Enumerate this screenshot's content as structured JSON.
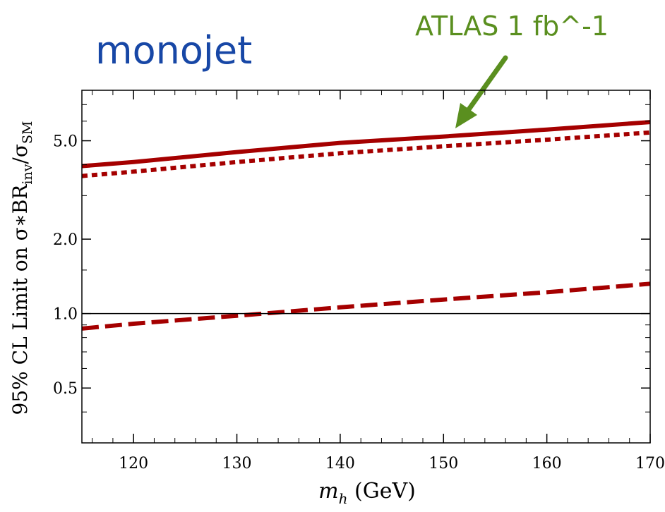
{
  "chart_data": {
    "type": "line",
    "title": "monojet",
    "annotation": "ATLAS 1 fb^-1",
    "xlabel": {
      "var": "m",
      "sub": "h",
      "unit": " (GeV)"
    },
    "ylabel": {
      "prefix": "95% CL Limit on σ∗BR",
      "sub1": "inv",
      "mid": "/σ",
      "sub2": "SM"
    },
    "xlim": [
      115,
      170
    ],
    "ylim": [
      0.3,
      8.0
    ],
    "yscale": "log",
    "grid": false,
    "x_ticks": [
      120,
      130,
      140,
      150,
      160,
      170
    ],
    "x_tick_labels": [
      "120",
      "130",
      "140",
      "150",
      "160",
      "170"
    ],
    "y_ticks": [
      0.5,
      1.0,
      2.0,
      5.0
    ],
    "y_tick_labels": [
      "0.5",
      "1.0",
      "2.0",
      "5.0"
    ],
    "reference_line": 1.0,
    "colors": {
      "title": "#1747a6",
      "annotation": "#5a8f1f",
      "series": "#a50000",
      "reference": "#000000"
    },
    "series": [
      {
        "style": "solid",
        "x": [
          115,
          120,
          130,
          140,
          150,
          160,
          170
        ],
        "y": [
          3.95,
          4.1,
          4.5,
          4.9,
          5.2,
          5.55,
          5.95
        ]
      },
      {
        "style": "dotted",
        "x": [
          115,
          120,
          130,
          140,
          150,
          160,
          170
        ],
        "y": [
          3.6,
          3.75,
          4.1,
          4.45,
          4.75,
          5.05,
          5.4
        ]
      },
      {
        "style": "dashed",
        "x": [
          115,
          120,
          130,
          140,
          150,
          160,
          170
        ],
        "y": [
          0.87,
          0.91,
          0.98,
          1.06,
          1.14,
          1.22,
          1.32
        ]
      }
    ]
  }
}
